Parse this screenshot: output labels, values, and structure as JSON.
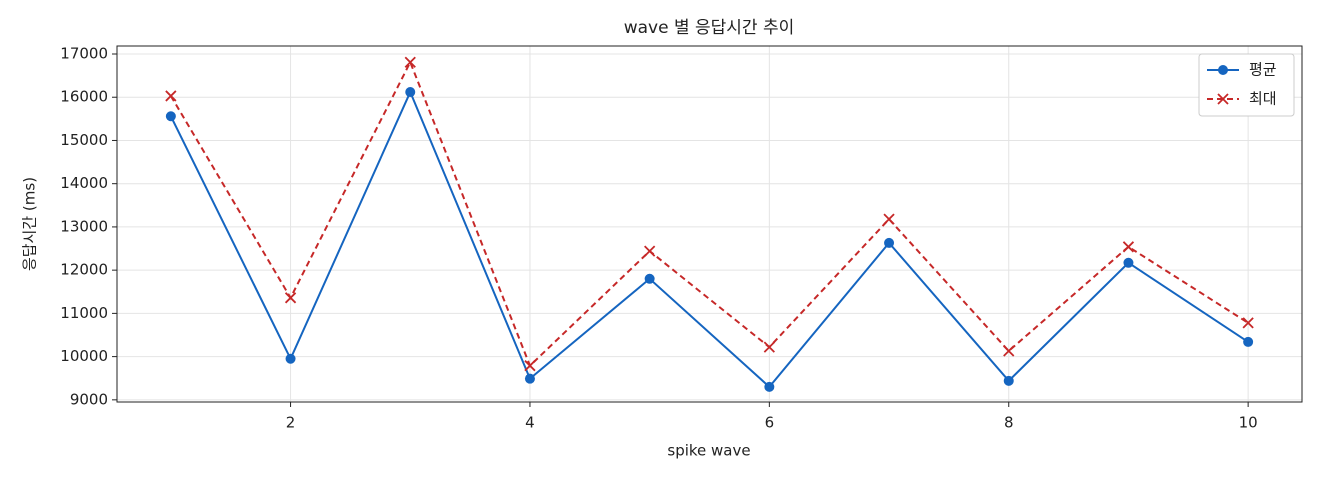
{
  "chart_data": {
    "type": "line",
    "title": "wave 별 응답시간 추이",
    "x_label": "spike wave",
    "y_label": "응답시간 (ms)",
    "x": [
      1,
      2,
      3,
      4,
      5,
      6,
      7,
      8,
      9,
      10
    ],
    "series": [
      {
        "name": "평균",
        "color": "#1565c0",
        "marker": "circle",
        "dashed": false,
        "values": [
          15560,
          9950,
          16120,
          9490,
          11800,
          9300,
          12630,
          9440,
          12170,
          10340
        ]
      },
      {
        "name": "최대",
        "color": "#c62828",
        "marker": "x",
        "dashed": true,
        "values": [
          16030,
          11360,
          16810,
          9790,
          12440,
          10220,
          13180,
          10130,
          12540,
          10780
        ]
      }
    ],
    "xlim": [
      0.55,
      10.45
    ],
    "xticks": [
      2,
      4,
      6,
      8,
      10
    ],
    "ylim": [
      8950,
      17185
    ],
    "yticks": [
      9000,
      10000,
      11000,
      12000,
      13000,
      14000,
      15000,
      16000,
      17000
    ],
    "grid": true,
    "legend": "upper right"
  }
}
